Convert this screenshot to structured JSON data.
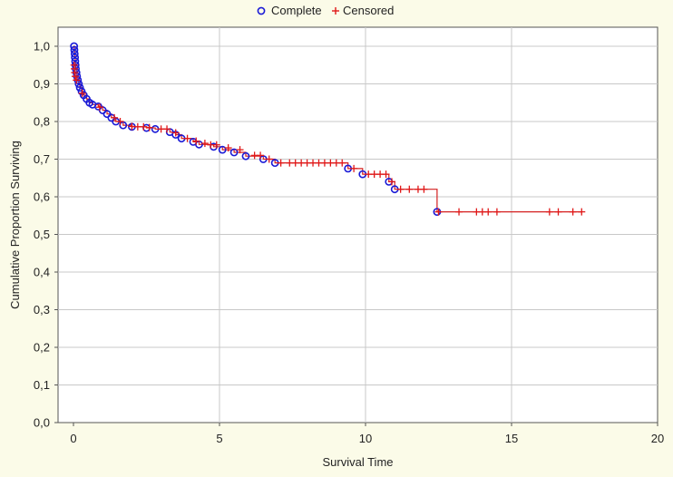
{
  "chart_data": {
    "type": "line",
    "title": "",
    "xlabel": "Survival Time",
    "ylabel": "Cumulative Proportion Surviving",
    "xlim": [
      0,
      20
    ],
    "ylim": [
      0,
      1
    ],
    "xticks": [
      0,
      5,
      10,
      15,
      20
    ],
    "xtick_labels": [
      "0",
      "5",
      "10",
      "15",
      "20"
    ],
    "yticks": [
      0,
      0.1,
      0.2,
      0.3,
      0.4,
      0.5,
      0.6,
      0.7,
      0.8,
      0.9,
      1.0
    ],
    "ytick_labels": [
      "0,0",
      "0,1",
      "0,2",
      "0,3",
      "0,4",
      "0,5",
      "0,6",
      "0,7",
      "0,8",
      "0,9",
      "1,0"
    ],
    "grid": true,
    "legend_position": "top-center",
    "colors": {
      "complete": "#1a1ad6",
      "censored": "#e01818",
      "line": "#d42020"
    },
    "series": [
      {
        "name": "Complete",
        "marker": "circle",
        "points": [
          [
            0.02,
            1.0
          ],
          [
            0.03,
            0.99
          ],
          [
            0.04,
            0.98
          ],
          [
            0.05,
            0.97
          ],
          [
            0.06,
            0.96
          ],
          [
            0.07,
            0.95
          ],
          [
            0.08,
            0.94
          ],
          [
            0.1,
            0.93
          ],
          [
            0.12,
            0.92
          ],
          [
            0.15,
            0.91
          ],
          [
            0.18,
            0.9
          ],
          [
            0.22,
            0.89
          ],
          [
            0.28,
            0.88
          ],
          [
            0.35,
            0.87
          ],
          [
            0.45,
            0.86
          ],
          [
            0.55,
            0.85
          ],
          [
            0.65,
            0.845
          ],
          [
            0.85,
            0.84
          ],
          [
            1.0,
            0.83
          ],
          [
            1.15,
            0.82
          ],
          [
            1.3,
            0.81
          ],
          [
            1.45,
            0.8
          ],
          [
            1.7,
            0.79
          ],
          [
            2.0,
            0.786
          ],
          [
            2.5,
            0.783
          ],
          [
            2.8,
            0.78
          ],
          [
            3.3,
            0.772
          ],
          [
            3.5,
            0.765
          ],
          [
            3.7,
            0.755
          ],
          [
            4.1,
            0.746
          ],
          [
            4.3,
            0.739
          ],
          [
            4.8,
            0.733
          ],
          [
            5.1,
            0.725
          ],
          [
            5.5,
            0.718
          ],
          [
            5.9,
            0.708
          ],
          [
            6.5,
            0.7
          ],
          [
            6.9,
            0.69
          ],
          [
            9.4,
            0.675
          ],
          [
            9.9,
            0.66
          ],
          [
            10.8,
            0.64
          ],
          [
            11.0,
            0.62
          ],
          [
            12.45,
            0.56
          ]
        ]
      },
      {
        "name": "Censored",
        "marker": "plus",
        "points": [
          [
            0.02,
            0.95
          ],
          [
            0.03,
            0.94
          ],
          [
            0.04,
            0.93
          ],
          [
            0.06,
            0.92
          ],
          [
            0.1,
            0.91
          ],
          [
            0.3,
            0.875
          ],
          [
            0.9,
            0.838
          ],
          [
            1.4,
            0.81
          ],
          [
            1.6,
            0.8
          ],
          [
            2.0,
            0.787
          ],
          [
            2.2,
            0.786
          ],
          [
            2.4,
            0.786
          ],
          [
            2.6,
            0.784
          ],
          [
            3.0,
            0.78
          ],
          [
            3.2,
            0.78
          ],
          [
            3.5,
            0.77
          ],
          [
            3.9,
            0.755
          ],
          [
            4.2,
            0.748
          ],
          [
            4.5,
            0.742
          ],
          [
            4.7,
            0.738
          ],
          [
            4.9,
            0.738
          ],
          [
            5.3,
            0.73
          ],
          [
            5.7,
            0.725
          ],
          [
            6.2,
            0.71
          ],
          [
            6.4,
            0.71
          ],
          [
            6.7,
            0.7
          ],
          [
            7.1,
            0.69
          ],
          [
            7.4,
            0.69
          ],
          [
            7.6,
            0.69
          ],
          [
            7.8,
            0.69
          ],
          [
            8.0,
            0.69
          ],
          [
            8.2,
            0.69
          ],
          [
            8.4,
            0.69
          ],
          [
            8.6,
            0.69
          ],
          [
            8.8,
            0.69
          ],
          [
            9.0,
            0.69
          ],
          [
            9.2,
            0.69
          ],
          [
            9.6,
            0.675
          ],
          [
            10.1,
            0.66
          ],
          [
            10.3,
            0.66
          ],
          [
            10.5,
            0.66
          ],
          [
            10.7,
            0.66
          ],
          [
            10.9,
            0.64
          ],
          [
            11.2,
            0.62
          ],
          [
            11.5,
            0.62
          ],
          [
            11.8,
            0.62
          ],
          [
            12.0,
            0.62
          ],
          [
            12.5,
            0.56
          ],
          [
            13.2,
            0.56
          ],
          [
            13.8,
            0.56
          ],
          [
            14.0,
            0.56
          ],
          [
            14.2,
            0.56
          ],
          [
            14.5,
            0.56
          ],
          [
            16.3,
            0.56
          ],
          [
            16.6,
            0.56
          ],
          [
            17.1,
            0.56
          ],
          [
            17.4,
            0.56
          ]
        ]
      }
    ],
    "step_line": [
      [
        0.0,
        1.0
      ],
      [
        0.02,
        1.0
      ],
      [
        0.03,
        0.99
      ],
      [
        0.04,
        0.98
      ],
      [
        0.05,
        0.97
      ],
      [
        0.06,
        0.96
      ],
      [
        0.07,
        0.95
      ],
      [
        0.08,
        0.94
      ],
      [
        0.1,
        0.93
      ],
      [
        0.12,
        0.92
      ],
      [
        0.15,
        0.91
      ],
      [
        0.18,
        0.9
      ],
      [
        0.22,
        0.89
      ],
      [
        0.28,
        0.88
      ],
      [
        0.35,
        0.87
      ],
      [
        0.45,
        0.86
      ],
      [
        0.55,
        0.85
      ],
      [
        0.65,
        0.845
      ],
      [
        0.85,
        0.84
      ],
      [
        1.0,
        0.83
      ],
      [
        1.15,
        0.82
      ],
      [
        1.3,
        0.81
      ],
      [
        1.45,
        0.8
      ],
      [
        1.7,
        0.79
      ],
      [
        2.0,
        0.786
      ],
      [
        2.5,
        0.783
      ],
      [
        2.8,
        0.78
      ],
      [
        3.3,
        0.772
      ],
      [
        3.5,
        0.765
      ],
      [
        3.7,
        0.755
      ],
      [
        4.1,
        0.746
      ],
      [
        4.3,
        0.739
      ],
      [
        4.8,
        0.733
      ],
      [
        5.1,
        0.725
      ],
      [
        5.5,
        0.718
      ],
      [
        5.9,
        0.708
      ],
      [
        6.5,
        0.7
      ],
      [
        6.9,
        0.69
      ],
      [
        9.4,
        0.675
      ],
      [
        9.9,
        0.66
      ],
      [
        10.8,
        0.64
      ],
      [
        11.0,
        0.62
      ],
      [
        12.45,
        0.56
      ],
      [
        17.4,
        0.56
      ]
    ]
  }
}
